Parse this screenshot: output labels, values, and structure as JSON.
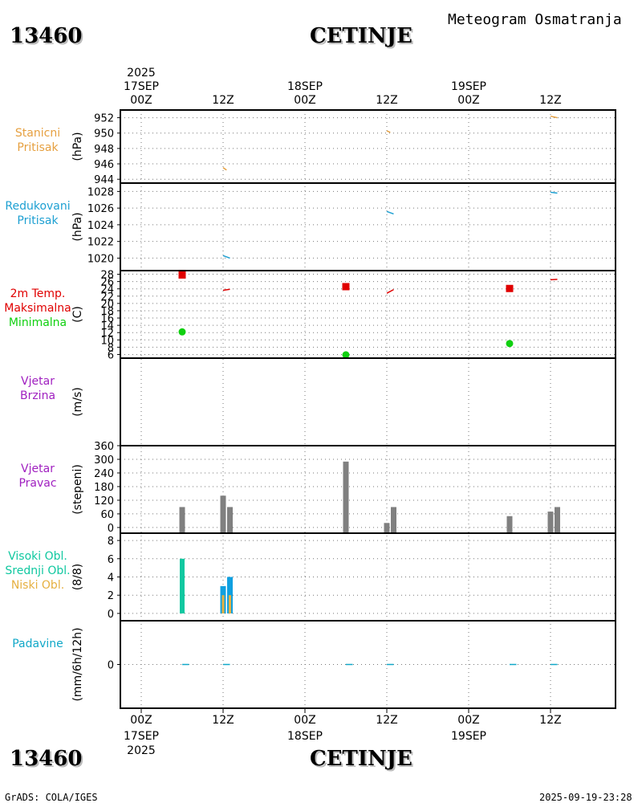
{
  "header": {
    "station_id": "13460",
    "station_name": "CETINJE",
    "title": "Meteogram Osmatranja"
  },
  "footer": {
    "station_id": "13460",
    "station_name": "CETINJE",
    "credit": "GrADS: COLA/IGES",
    "timestamp": "2025-09-19-23:28"
  },
  "time_axis": {
    "ticks": [
      "00Z",
      "12Z",
      "00Z",
      "12Z",
      "00Z",
      "12Z"
    ],
    "dates": [
      "17SEP",
      "18SEP",
      "19SEP"
    ],
    "year": "2025",
    "x_hours": [
      0,
      12,
      24,
      36,
      48,
      60
    ]
  },
  "colors": {
    "station_pressure": "#e6a040",
    "reduced_pressure": "#1ea0d2",
    "temp_label": "#e00000",
    "max_temp": "#e00000",
    "min_temp": "#10d010",
    "wind": "#a020c0",
    "wind_bar": "#808080",
    "high_cloud": "#10c8a0",
    "mid_cloud": "#10a0e0",
    "low_cloud": "#e6b040",
    "precip": "#10a8c8"
  },
  "chart_data": [
    {
      "type": "line",
      "panel": "station_pressure",
      "labels": [
        "Stanicni",
        "Pritisak"
      ],
      "unit": "(hPa)",
      "ylim": [
        943.5,
        953
      ],
      "yticks": [
        944,
        946,
        948,
        950,
        952
      ],
      "series": [
        {
          "values": [
            [
              12,
              945.5
            ],
            [
              12.5,
              945.2
            ]
          ]
        },
        {
          "values": [
            [
              36,
              950.3
            ],
            [
              36.5,
              950.1
            ]
          ]
        },
        {
          "values": [
            [
              60,
              952.2
            ],
            [
              61,
              952.0
            ]
          ]
        }
      ]
    },
    {
      "type": "line",
      "panel": "reduced_pressure",
      "labels": [
        "Redukovani",
        "Pritisak"
      ],
      "unit": "(hPa)",
      "ylim": [
        1018.5,
        1029
      ],
      "yticks": [
        1020,
        1022,
        1024,
        1026,
        1028
      ],
      "series": [
        {
          "values": [
            [
              12,
              1020.3
            ],
            [
              13,
              1020.0
            ]
          ]
        },
        {
          "values": [
            [
              36,
              1025.6
            ],
            [
              37,
              1025.3
            ]
          ]
        },
        {
          "values": [
            [
              60,
              1027.9
            ],
            [
              61,
              1027.8
            ]
          ]
        }
      ]
    },
    {
      "type": "scatter",
      "panel": "temperature",
      "labels": [
        "2m Temp.",
        "Maksimalna",
        "Minimalna"
      ],
      "unit": "(C)",
      "ylim": [
        5,
        29
      ],
      "yticks": [
        6,
        8,
        10,
        12,
        14,
        16,
        18,
        20,
        22,
        24,
        26,
        28
      ],
      "max_temp": [
        [
          6,
          27.8
        ],
        [
          30,
          24.6
        ],
        [
          54,
          24.1
        ]
      ],
      "min_temp": [
        [
          6,
          12.2
        ],
        [
          30,
          5.9
        ],
        [
          54,
          9.0
        ]
      ],
      "temp_lines": [
        [
          [
            12,
            23.6
          ],
          [
            13,
            23.9
          ]
        ],
        [
          [
            36,
            22.8
          ],
          [
            37,
            23.8
          ]
        ],
        [
          [
            60,
            26.5
          ],
          [
            61,
            26.6
          ]
        ]
      ]
    },
    {
      "type": "line",
      "panel": "wind_speed",
      "labels": [
        "Vjetar",
        "Brzina"
      ],
      "unit": "(m/s)",
      "ylim": [
        0,
        10
      ],
      "yticks": []
    },
    {
      "type": "bar",
      "panel": "wind_direction",
      "labels": [
        "Vjetar",
        "Pravac"
      ],
      "unit": "(stepeni)",
      "ylim": [
        -25,
        360
      ],
      "yticks": [
        0,
        60,
        120,
        180,
        240,
        300,
        360
      ],
      "bars": [
        [
          6,
          90
        ],
        [
          12,
          140
        ],
        [
          13,
          90
        ],
        [
          30,
          290
        ],
        [
          36,
          20
        ],
        [
          37,
          90
        ],
        [
          54,
          50
        ],
        [
          60,
          70
        ],
        [
          61,
          90
        ]
      ]
    },
    {
      "type": "bar",
      "panel": "clouds",
      "labels": [
        "Visoki Obl.",
        "Srednji Obl.",
        "Niski Obl."
      ],
      "unit": "(8/8)",
      "ylim": [
        -0.8,
        8.8
      ],
      "yticks": [
        0,
        2,
        4,
        6,
        8
      ],
      "high": [
        [
          6,
          6
        ]
      ],
      "mid": [
        [
          12,
          3
        ],
        [
          13,
          4
        ]
      ],
      "low": [
        [
          12,
          2
        ],
        [
          13,
          2
        ]
      ]
    },
    {
      "type": "line",
      "panel": "precipitation",
      "labels": [
        "Padavine"
      ],
      "unit": "(mm/6h/12h)",
      "ylim": [
        -5,
        5
      ],
      "yticks": [
        0
      ],
      "series": [
        {
          "values": [
            [
              6,
              0
            ],
            [
              7,
              0
            ]
          ]
        },
        {
          "values": [
            [
              12,
              0
            ],
            [
              13,
              0
            ]
          ]
        },
        {
          "values": [
            [
              30,
              0
            ],
            [
              31,
              0
            ]
          ]
        },
        {
          "values": [
            [
              36,
              0
            ],
            [
              37,
              0
            ]
          ]
        },
        {
          "values": [
            [
              54,
              0
            ],
            [
              55,
              0
            ]
          ]
        },
        {
          "values": [
            [
              60,
              0
            ],
            [
              61,
              0
            ]
          ]
        }
      ]
    }
  ]
}
